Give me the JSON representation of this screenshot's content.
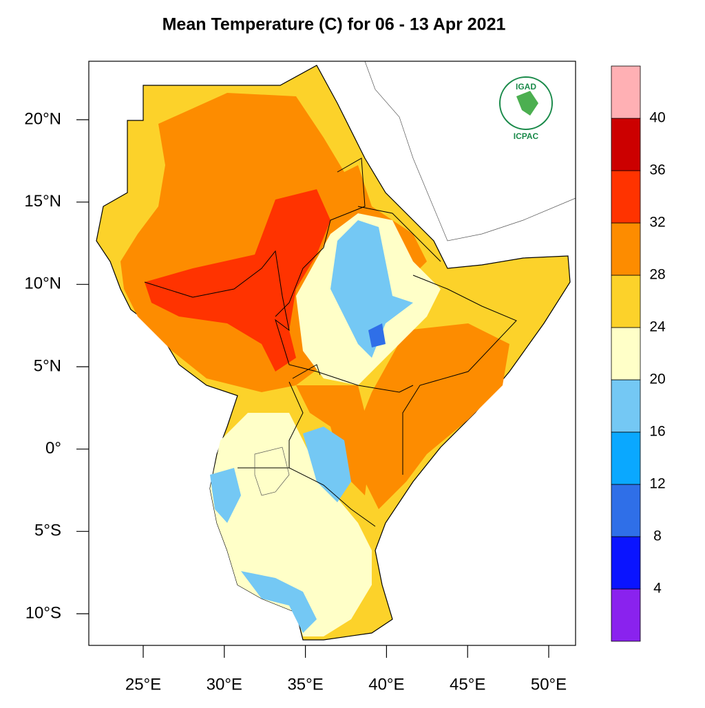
{
  "title": "Mean Temperature (C) for 06 - 13 Apr 2021",
  "map": {
    "lat_ticks": [
      {
        "value": 20,
        "label": "20°N"
      },
      {
        "value": 15,
        "label": "15°N"
      },
      {
        "value": 10,
        "label": "10°N"
      },
      {
        "value": 5,
        "label": "5°N"
      },
      {
        "value": 0,
        "label": "0°"
      },
      {
        "value": -5,
        "label": "5°S"
      },
      {
        "value": -10,
        "label": "10°S"
      }
    ],
    "lon_ticks": [
      {
        "value": 25,
        "label": "25°E"
      },
      {
        "value": 30,
        "label": "30°E"
      },
      {
        "value": 35,
        "label": "35°E"
      },
      {
        "value": 40,
        "label": "40°E"
      },
      {
        "value": 45,
        "label": "45°E"
      },
      {
        "value": 50,
        "label": "50°E"
      }
    ]
  },
  "colorbar": {
    "bounds": [
      4,
      8,
      12,
      16,
      20,
      24,
      28,
      32,
      36,
      40
    ],
    "colors": [
      "#8a22ee",
      "#0a14ff",
      "#2f6fe8",
      "#0aa8ff",
      "#74c8f4",
      "#ffffc8",
      "#fcd22a",
      "#fd8c00",
      "#ff3300",
      "#cc0000",
      "#ffb0b4"
    ]
  },
  "logo": {
    "name": "IGAD",
    "org": "ICPAC"
  }
}
